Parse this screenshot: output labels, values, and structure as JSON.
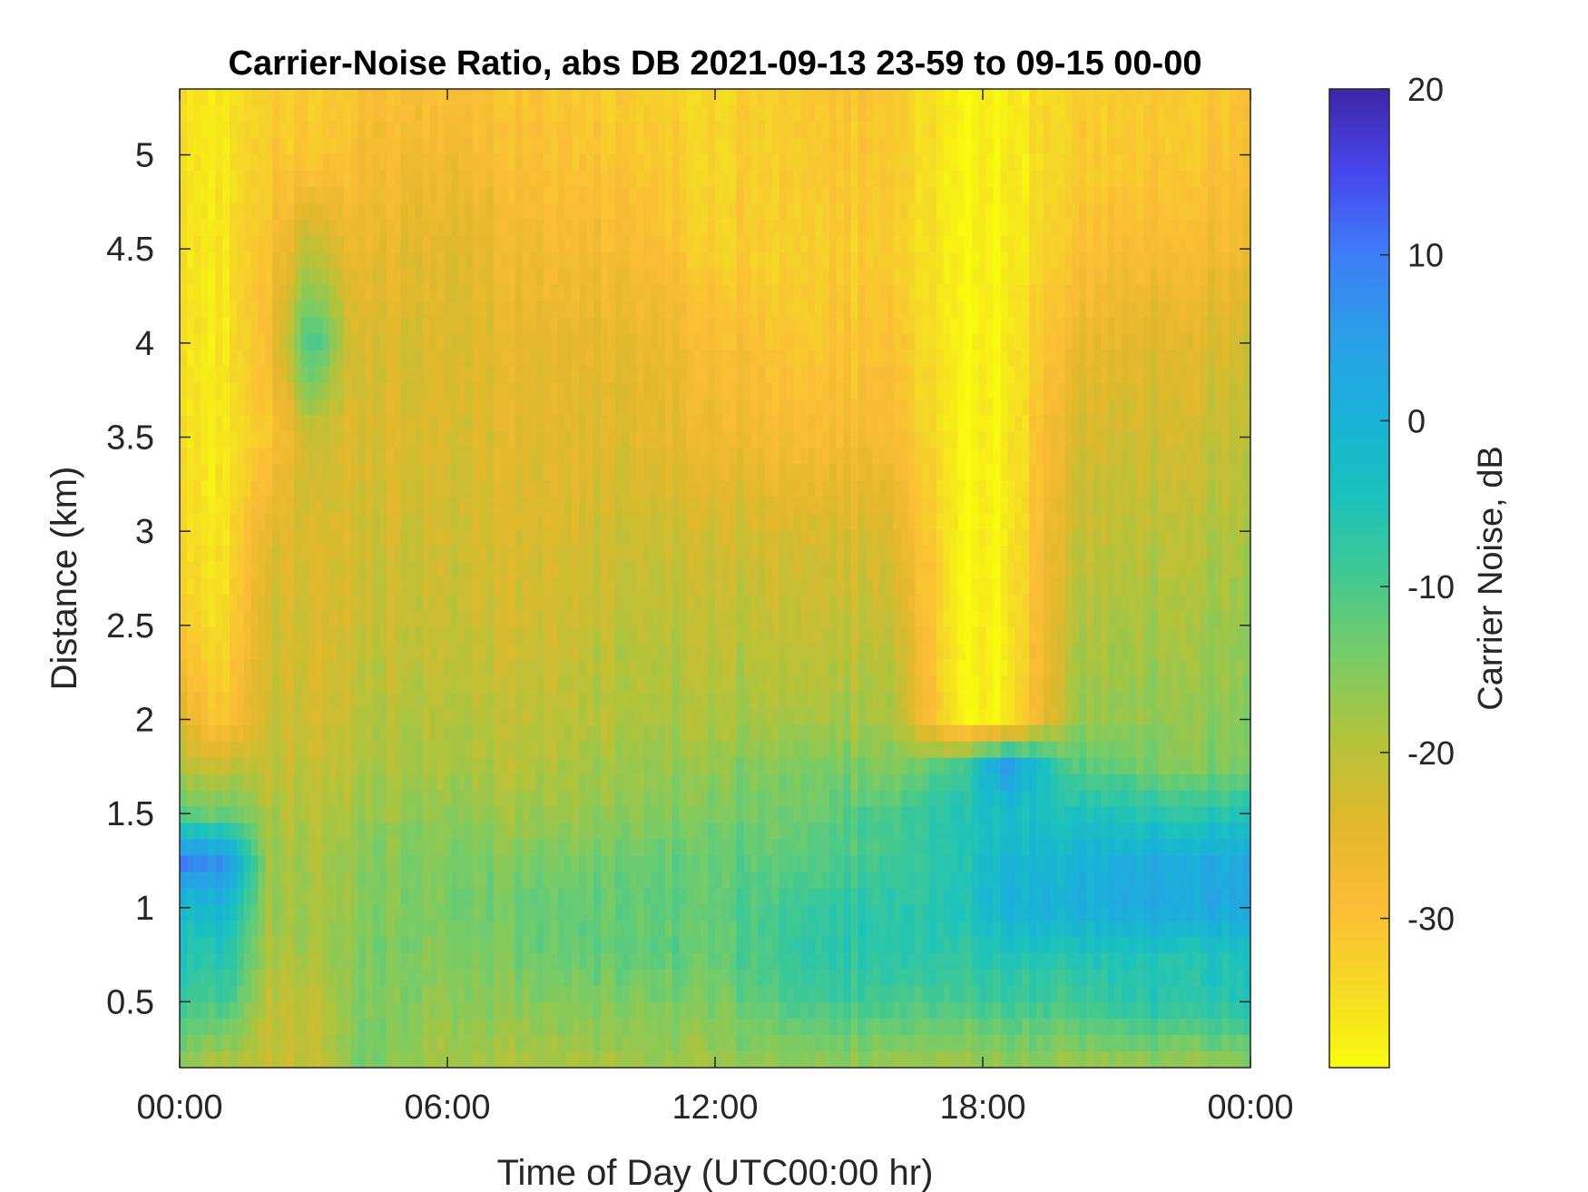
{
  "chart_data": {
    "type": "heatmap",
    "title": "Carrier-Noise Ratio, abs DB 2021-09-13 23-59 to 09-15 00-00",
    "xlabel": "Time of Day (UTC00:00 hr)",
    "ylabel": "Distance (km)",
    "colorbar_label": "Carrier Noise, dB",
    "xlim_hours": [
      0,
      24
    ],
    "ylim_km": [
      0.15,
      5.35
    ],
    "clim_db": [
      -39,
      20
    ],
    "x_ticks": [
      {
        "value": 0,
        "label": "00:00"
      },
      {
        "value": 6,
        "label": "06:00"
      },
      {
        "value": 12,
        "label": "12:00"
      },
      {
        "value": 18,
        "label": "18:00"
      },
      {
        "value": 24,
        "label": "00:00"
      }
    ],
    "y_ticks": [
      {
        "value": 0.5,
        "label": "0.5"
      },
      {
        "value": 1,
        "label": "1"
      },
      {
        "value": 1.5,
        "label": "1.5"
      },
      {
        "value": 2,
        "label": "2"
      },
      {
        "value": 2.5,
        "label": "2.5"
      },
      {
        "value": 3,
        "label": "3"
      },
      {
        "value": 3.5,
        "label": "3.5"
      },
      {
        "value": 4,
        "label": "4"
      },
      {
        "value": 4.5,
        "label": "4.5"
      },
      {
        "value": 5,
        "label": "5"
      }
    ],
    "colorbar_ticks": [
      {
        "value": 20,
        "label": "20"
      },
      {
        "value": 10,
        "label": "10"
      },
      {
        "value": 0,
        "label": "0"
      },
      {
        "value": -10,
        "label": "-10"
      },
      {
        "value": -20,
        "label": "-20"
      },
      {
        "value": -30,
        "label": "-30"
      }
    ],
    "colormap": "parula (reversed: yellow = low, dark blue = high)",
    "colormap_stops": [
      "#3e26a8",
      "#4746eb",
      "#3f7cf8",
      "#2b9de8",
      "#1ab2d8",
      "#1bc2bd",
      "#43c991",
      "#7bcc64",
      "#b3c33a",
      "#e2b82c",
      "#fbbd36",
      "#f5d926",
      "#f9fb0e"
    ],
    "grid": false,
    "time_samples": [
      0,
      1,
      2,
      3,
      4,
      6,
      8,
      10,
      12,
      14,
      16,
      17.5,
      18.5,
      20,
      22,
      24
    ],
    "distance_samples_km": [
      0.15,
      0.5,
      0.75,
      1.0,
      1.25,
      1.5,
      1.75,
      2.0,
      2.5,
      3.0,
      3.5,
      4.0,
      4.5,
      5.0,
      5.35
    ],
    "cnr_grid_db": [
      [
        -17,
        -20,
        -21,
        -22,
        -14,
        -18,
        -19,
        -18,
        -17,
        -16,
        -17,
        -18,
        -17,
        -17,
        -17,
        -17
      ],
      [
        -9,
        -10,
        -20,
        -21,
        -15,
        -16,
        -16,
        -15,
        -14,
        -9,
        -10,
        -10,
        -9,
        -9,
        -6,
        -6
      ],
      [
        -6,
        -6,
        -18,
        -19,
        -15,
        -15,
        -14,
        -12,
        -12,
        -7,
        -6,
        -7,
        -6,
        -5,
        -5,
        -5
      ],
      [
        -3,
        -1,
        -17,
        -19,
        -16,
        -14,
        -13,
        -12,
        -12,
        -8,
        -7,
        -5,
        0,
        1,
        3,
        3
      ],
      [
        10,
        7,
        -17,
        -19,
        -16,
        -14,
        -15,
        -13,
        -12,
        -11,
        -9,
        -6,
        -2,
        0,
        2,
        2
      ],
      [
        -12,
        -13,
        -18,
        -20,
        -18,
        -16,
        -18,
        -16,
        -14,
        -13,
        -10,
        -5,
        -4,
        -4,
        -6,
        -6
      ],
      [
        -20,
        -22,
        -20,
        -22,
        -19,
        -18,
        -20,
        -17,
        -16,
        -14,
        -15,
        -10,
        5,
        -11,
        -14,
        -15
      ],
      [
        -24,
        -32,
        -21,
        -23,
        -20,
        -19,
        -21,
        -19,
        -18,
        -18,
        -18,
        -38,
        -38,
        -17,
        -16,
        -16
      ],
      [
        -32,
        -35,
        -22,
        -24,
        -22,
        -21,
        -23,
        -20,
        -20,
        -21,
        -21,
        -38,
        -38,
        -19,
        -18,
        -17
      ],
      [
        -34,
        -37,
        -24,
        -24,
        -23,
        -22,
        -24,
        -22,
        -22,
        -23,
        -24,
        -38,
        -38,
        -21,
        -20,
        -19
      ],
      [
        -35,
        -37,
        -30,
        -22,
        -24,
        -23,
        -25,
        -24,
        -26,
        -28,
        -28,
        -38,
        -38,
        -23,
        -22,
        -21
      ],
      [
        -35,
        -37,
        -28,
        -9,
        -24,
        -23,
        -26,
        -25,
        -28,
        -31,
        -30,
        -38,
        -38,
        -26,
        -24,
        -23
      ],
      [
        -35,
        -37,
        -29,
        -20,
        -27,
        -24,
        -28,
        -28,
        -32,
        -32,
        -32,
        -38,
        -38,
        -30,
        -28,
        -27
      ],
      [
        -35,
        -37,
        -31,
        -32,
        -29,
        -27,
        -30,
        -31,
        -33,
        -31,
        -31,
        -38,
        -38,
        -32,
        -31,
        -30
      ],
      [
        -35,
        -37,
        -32,
        -33,
        -30,
        -29,
        -31,
        -32,
        -33,
        -31,
        -31,
        -38,
        -38,
        -32,
        -31,
        -30
      ]
    ]
  }
}
